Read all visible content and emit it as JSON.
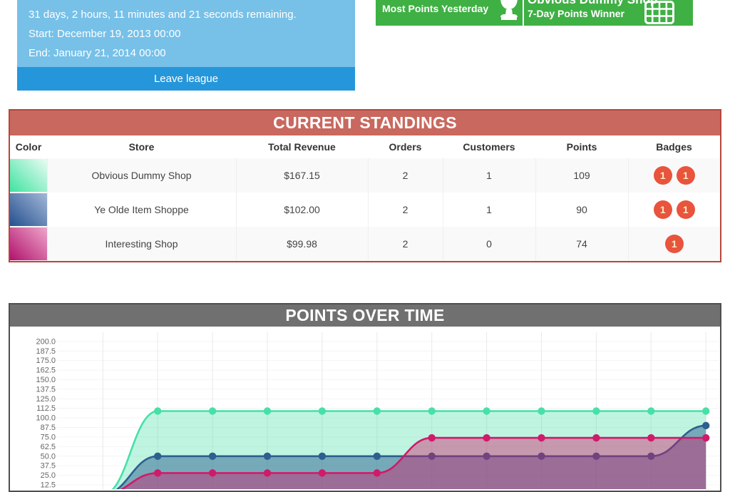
{
  "colors": {
    "panel_blue": "#77c0e8",
    "button_blue": "#2596da",
    "award_green": "#3fb044",
    "standings_header_red": "#c9685e",
    "standings_border_red": "#b5473b",
    "chart_header_gray": "#707070",
    "badge_red": "#e8543c",
    "badge_text": "#f8eec6"
  },
  "league_panel": {
    "remaining": "31 days, 2 hours, 11 minutes and 21 seconds remaining.",
    "start": "Start: December 19, 2013 00:00",
    "end": "End: January 21, 2014 00:00",
    "leave_button": "Leave league"
  },
  "awards_panel": {
    "left": {
      "label": "Most Points Yesterday",
      "icon": "trophy-icon"
    },
    "right": {
      "shop_name": "Obvious Dummy Shop",
      "label": "7-Day Points Winner",
      "icon": "calendar-grid-icon"
    }
  },
  "standings": {
    "title": "CURRENT STANDINGS",
    "columns": [
      "Color",
      "Store",
      "Total Revenue",
      "Orders",
      "Customers",
      "Points",
      "Badges"
    ],
    "rows": [
      {
        "color_from": "#3fe3a0",
        "color_to": "#eafcf4",
        "store": "Obvious Dummy Shop",
        "total_revenue": "$167.15",
        "orders": "2",
        "customers": "1",
        "points": "109",
        "badges": [
          "1",
          "1"
        ]
      },
      {
        "color_from": "#25508f",
        "color_to": "#a3b8d8",
        "store": "Ye Olde Item Shoppe",
        "total_revenue": "$102.00",
        "orders": "2",
        "customers": "1",
        "points": "90",
        "badges": [
          "1",
          "1"
        ]
      },
      {
        "color_from": "#b0126c",
        "color_to": "#efa6cb",
        "store": "Interesting Shop",
        "total_revenue": "$99.98",
        "orders": "2",
        "customers": "0",
        "points": "74",
        "badges": [
          "1"
        ]
      }
    ]
  },
  "chart_panel": {
    "title": "POINTS OVER TIME"
  },
  "chart_data": {
    "type": "area",
    "title": "POINTS OVER TIME",
    "xlabel": "",
    "ylabel": "",
    "ylim": [
      0,
      200
    ],
    "y_ticks": [
      200.0,
      187.5,
      175.0,
      162.5,
      150.0,
      137.5,
      125.0,
      112.5,
      100.0,
      87.5,
      75.0,
      62.5,
      50.0,
      37.5,
      25.0,
      12.5
    ],
    "grid": true,
    "legend_position": "none",
    "x_axis_labels_visible": false,
    "x_points": 12,
    "series": [
      {
        "name": "Obvious Dummy Shop",
        "color": "#47e0a8",
        "fill_opacity": 0.35,
        "values": [
          0,
          109,
          109,
          109,
          109,
          109,
          109,
          109,
          109,
          109,
          109,
          109
        ]
      },
      {
        "name": "Ye Olde Item Shoppe",
        "color": "#2d5f8f",
        "fill_opacity": 0.5,
        "values": [
          0,
          50,
          50,
          50,
          50,
          50,
          50,
          50,
          50,
          50,
          50,
          90
        ]
      },
      {
        "name": "Interesting Shop",
        "color": "#d01a6a",
        "fill_opacity": 0.42,
        "values": [
          0,
          28,
          28,
          28,
          28,
          28,
          74,
          74,
          74,
          74,
          74,
          74
        ]
      }
    ]
  }
}
